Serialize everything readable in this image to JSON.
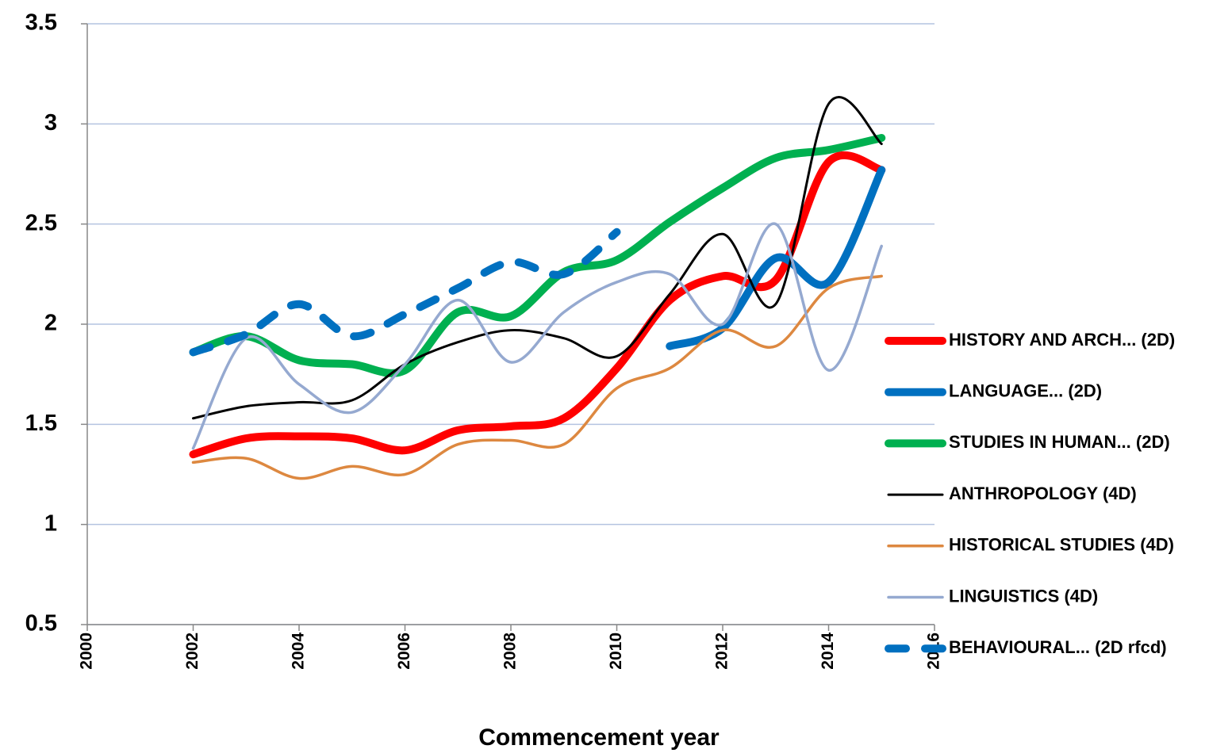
{
  "chart_data": {
    "type": "line",
    "x_label": "Commencement year",
    "x": [
      2002,
      2003,
      2004,
      2005,
      2006,
      2007,
      2008,
      2009,
      2010,
      2011,
      2012,
      2013,
      2014,
      2015
    ],
    "xlim": [
      2000,
      2016
    ],
    "xticks": [
      2000,
      2002,
      2004,
      2006,
      2008,
      2010,
      2012,
      2014,
      2016
    ],
    "ylim": [
      0.5,
      3.5
    ],
    "yticks": [
      0.5,
      1,
      1.5,
      2,
      2.5,
      3,
      3.5
    ],
    "grid": true,
    "legend": "right",
    "smooth": true,
    "series": [
      {
        "name": "HISTORY AND ARCH... (2D)",
        "color": "#ff0000",
        "width": 10,
        "dash": false,
        "values": [
          1.35,
          1.43,
          1.44,
          1.43,
          1.37,
          1.47,
          1.49,
          1.53,
          1.78,
          2.12,
          2.24,
          2.22,
          2.81,
          2.77
        ]
      },
      {
        "name": "LANGUAGE... (2D)",
        "color": "#0070c0",
        "width": 10,
        "dash": false,
        "values": [
          null,
          null,
          null,
          null,
          null,
          null,
          null,
          null,
          null,
          1.89,
          1.98,
          2.33,
          2.21,
          2.77
        ]
      },
      {
        "name": "STUDIES IN HUMAN... (2D)",
        "color": "#00b050",
        "width": 10,
        "dash": false,
        "values": [
          1.86,
          1.94,
          1.82,
          1.8,
          1.77,
          2.06,
          2.04,
          2.26,
          2.32,
          2.51,
          2.68,
          2.83,
          2.87,
          2.93
        ]
      },
      {
        "name": "ANTHROPOLOGY (4D)",
        "color": "#000000",
        "width": 3,
        "dash": false,
        "values": [
          1.53,
          1.59,
          1.61,
          1.62,
          1.8,
          1.91,
          1.97,
          1.93,
          1.84,
          2.15,
          2.45,
          2.1,
          3.1,
          2.9
        ]
      },
      {
        "name": "HISTORICAL STUDIES (4D)",
        "color": "#dd8840",
        "width": 3.5,
        "dash": false,
        "values": [
          1.31,
          1.33,
          1.23,
          1.29,
          1.25,
          1.4,
          1.42,
          1.4,
          1.68,
          1.78,
          1.97,
          1.89,
          2.18,
          2.24
        ]
      },
      {
        "name": "LINGUISTICS (4D)",
        "color": "#95a9d0",
        "width": 3.5,
        "dash": false,
        "values": [
          1.38,
          1.93,
          1.7,
          1.56,
          1.8,
          2.12,
          1.81,
          2.06,
          2.21,
          2.25,
          2.0,
          2.5,
          1.77,
          2.39
        ]
      },
      {
        "name": "BEHAVIOURAL... (2D rfcd)",
        "color": "#0070c0",
        "width": 10,
        "dash": true,
        "values": [
          1.86,
          1.95,
          2.1,
          1.94,
          2.05,
          2.18,
          2.31,
          2.25,
          2.46,
          null,
          null,
          null,
          null,
          null
        ]
      }
    ]
  }
}
